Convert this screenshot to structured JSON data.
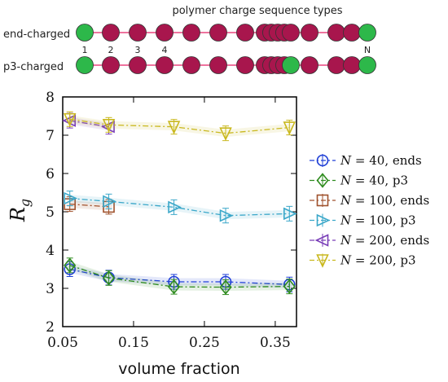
{
  "sequence_panel": {
    "title": "polymer charge sequence types",
    "rows": [
      {
        "label": "end-charged",
        "pattern": [
          "n",
          "c",
          "c",
          "c",
          "c",
          "c",
          "c",
          "c",
          "c",
          "c",
          "c",
          "c",
          "c",
          "c",
          "c",
          "n"
        ]
      },
      {
        "label": "p3-charged",
        "pattern": [
          "n",
          "c",
          "c",
          "c",
          "c",
          "c",
          "c",
          "c",
          "c",
          "c",
          "c",
          "n",
          "c",
          "c",
          "c",
          "n"
        ]
      }
    ],
    "index_labels": [
      "1",
      "2",
      "3",
      "4",
      "N"
    ],
    "colors": {
      "neutral": "#2db84a",
      "charged": "#a8164d",
      "bond": "#e8457e"
    }
  },
  "chart_data": {
    "type": "line",
    "xlabel": "volume fraction",
    "ylabel_main": "R",
    "ylabel_sub": "g",
    "xlim": [
      0.05,
      0.38
    ],
    "ylim": [
      2,
      8
    ],
    "xticks": [
      "0.05",
      "0.15",
      "0.25",
      "0.35"
    ],
    "xtick_values": [
      0.05,
      0.15,
      0.25,
      0.35
    ],
    "yticks": [
      "2",
      "3",
      "4",
      "5",
      "6",
      "7",
      "8"
    ],
    "ytick_values": [
      2,
      3,
      4,
      5,
      6,
      7,
      8
    ],
    "grid": false,
    "legend_position": "right",
    "series": [
      {
        "name": "N = 40, ends",
        "N_value": "40",
        "suffix": ", ends",
        "color": "#1f3fd6",
        "marker": "circle",
        "x": [
          0.06,
          0.115,
          0.207,
          0.28,
          0.37
        ],
        "y": [
          3.5,
          3.28,
          3.17,
          3.17,
          3.1
        ]
      },
      {
        "name": "N = 40, p3",
        "N_value": "40",
        "suffix": ", p3",
        "color": "#2e8b1e",
        "marker": "diamond",
        "x": [
          0.06,
          0.115,
          0.207,
          0.28,
          0.37
        ],
        "y": [
          3.6,
          3.27,
          3.04,
          3.03,
          3.05
        ]
      },
      {
        "name": "N = 100, ends",
        "N_value": "100",
        "suffix": ", ends",
        "color": "#a0522d",
        "marker": "square",
        "x": [
          0.06,
          0.115
        ],
        "y": [
          5.2,
          5.13
        ]
      },
      {
        "name": "N = 100, p3",
        "N_value": "100",
        "suffix": ", p3",
        "color": "#3aa7c9",
        "marker": "triangle-right",
        "x": [
          0.06,
          0.115,
          0.207,
          0.28,
          0.37
        ],
        "y": [
          5.35,
          5.27,
          5.12,
          4.9,
          4.95
        ]
      },
      {
        "name": "N = 200, ends",
        "N_value": "200",
        "suffix": ", ends",
        "color": "#7a3fb8",
        "marker": "triangle-left",
        "x": [
          0.06,
          0.115
        ],
        "y": [
          7.38,
          7.22
        ]
      },
      {
        "name": "N = 200, p3",
        "N_value": "200",
        "suffix": ", p3",
        "color": "#c9b81e",
        "marker": "triangle-down",
        "x": [
          0.06,
          0.115,
          0.207,
          0.28,
          0.37
        ],
        "y": [
          7.42,
          7.27,
          7.22,
          7.05,
          7.2
        ]
      }
    ]
  }
}
